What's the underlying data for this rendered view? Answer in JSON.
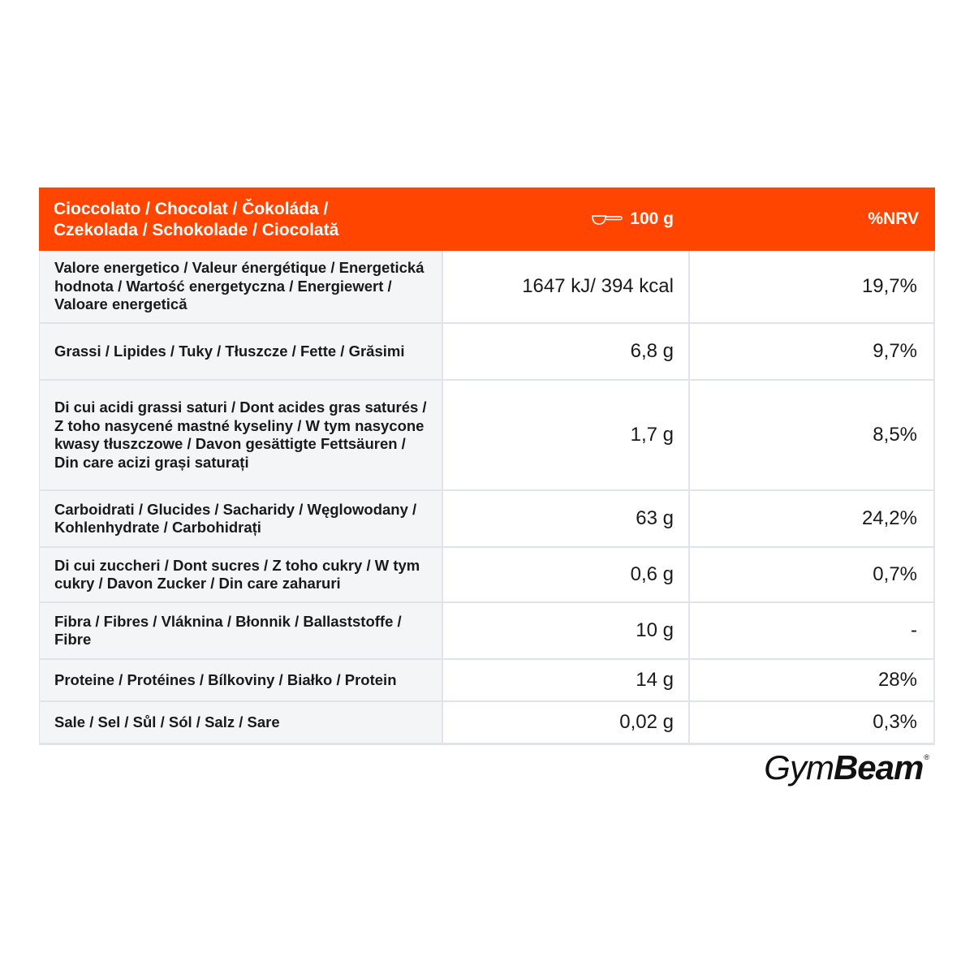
{
  "header": {
    "name_line1": "Cioccolato / Chocolat / Čokoláda /",
    "name_line2": "Czekolada / Schokolade / Ciocolată",
    "serving_icon": "scoop-icon",
    "serving": "100 g",
    "nrv": "%NRV"
  },
  "rows": [
    {
      "label": "Valore energetico / Valeur énergétique / Energetická hodnota / Wartość energetyczna / Energiewert / Valoare energetică",
      "amount": "1647 kJ/ 394 kcal",
      "nrv": "19,7%"
    },
    {
      "label": "Grassi / Lipides / Tuky / Tłuszcze / Fette / Grăsimi",
      "amount": "6,8 g",
      "nrv": "9,7%"
    },
    {
      "label": "Di cui acidi grassi saturi / Dont acides gras saturés / Z toho nasycené mastné kyseliny / W tym nasycone kwasy tłuszczowe / Davon gesättigte Fettsäuren / Din care acizi grași saturați",
      "amount": "1,7 g",
      "nrv": "8,5%"
    },
    {
      "label": "Carboidrati / Glucides / Sacharidy / Węglowodany / Kohlenhydrate / Carbohidrați",
      "amount": "63 g",
      "nrv": "24,2%"
    },
    {
      "label": "Di cui zuccheri / Dont sucres / Z toho cukry / W tym cukry / Davon Zucker / Din care zaharuri",
      "amount": "0,6 g",
      "nrv": "0,7%"
    },
    {
      "label": "Fibra / Fibres / Vláknina / Błonnik / Ballaststoffe / Fibre",
      "amount": "10 g",
      "nrv": "-"
    },
    {
      "label": "Proteine / Protéines / Bílkoviny / Białko / Protein",
      "amount": "14 g",
      "nrv": "28%"
    },
    {
      "label": "Sale / Sel / Sůl / Sól / Salz / Sare",
      "amount": "0,02 g",
      "nrv": "0,3%"
    }
  ],
  "brand": {
    "light": "Gym",
    "bold": "Beam",
    "mark": "®"
  },
  "colors": {
    "header_bg": "#ff4500",
    "label_bg": "#f4f5f7",
    "border": "#e0e3e8"
  }
}
